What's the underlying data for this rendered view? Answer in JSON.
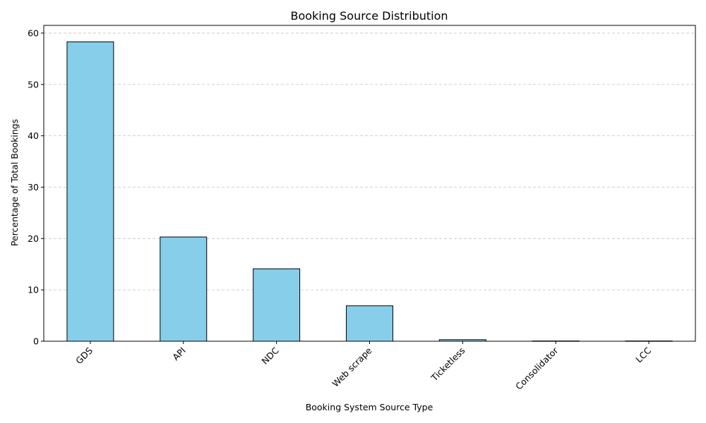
{
  "chart_data": {
    "type": "bar",
    "title": "Booking Source Distribution",
    "xlabel": "Booking System Source Type",
    "ylabel": "Percentage of Total Bookings",
    "categories": [
      "GDS",
      "API",
      "NDC",
      "Web scrape",
      "Ticketless",
      "Consolidator",
      "LCC"
    ],
    "values": [
      58.3,
      20.3,
      14.1,
      6.9,
      0.3,
      0.05,
      0.05
    ],
    "ylim": [
      0,
      61.5
    ],
    "yticks": [
      0,
      10,
      20,
      30,
      40,
      50,
      60
    ],
    "grid": "y-dashed",
    "bar_color": "#87CEEB",
    "edge_color": "#000000",
    "legend": "none"
  }
}
